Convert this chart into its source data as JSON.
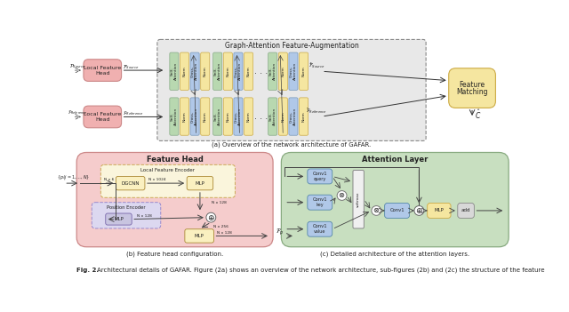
{
  "title": "Fig. 2.",
  "caption": "Architectural details of GAFAR. Figure (2a) shows an overview of the network architecture, sub-figures (2b) and (2c) the structure of the feature",
  "fig_caption_a": "(a) Overview of the network architecture of GAFAR.",
  "fig_caption_b": "(b) Feature head configuration.",
  "fig_caption_c": "(c) Detailed architecture of the attention layers.",
  "pink_color": "#f0b0b0",
  "pink_bg": "#f5c8c8",
  "yellow_color": "#f5e6a0",
  "yellow_light": "#faf0c0",
  "green_color": "#b8d8b0",
  "green_bg": "#c8e0c0",
  "blue_color": "#b0c8e8",
  "lavender_color": "#c8c4e0",
  "gray_color": "#d8d8d8",
  "white_color": "#ffffff",
  "attn_bg": "#e8e8e8"
}
